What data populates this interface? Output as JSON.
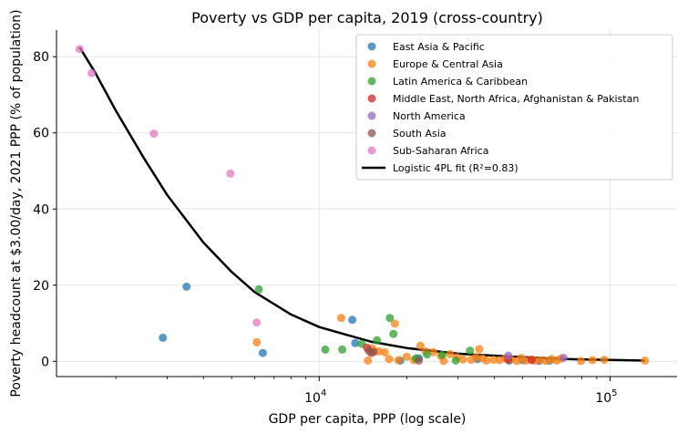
{
  "chart_data": {
    "type": "scatter",
    "title": "Poverty vs GDP per capita, 2019 (cross-country)",
    "xlabel": "GDP per capita, PPP (log scale)",
    "ylabel": "Poverty headcount at $3.00/day, 2021 PPP (% of population)",
    "x_scale": "log",
    "xlim": [
      1250,
      170000
    ],
    "ylim": [
      -4,
      87
    ],
    "x_ticks": [
      {
        "value": 10000,
        "base": "10",
        "exp": "4"
      },
      {
        "value": 100000,
        "base": "10",
        "exp": "5"
      }
    ],
    "y_ticks": [
      {
        "value": 0,
        "label": "0"
      },
      {
        "value": 20,
        "label": "20"
      },
      {
        "value": 40,
        "label": "40"
      },
      {
        "value": 60,
        "label": "60"
      },
      {
        "value": 80,
        "label": "80"
      }
    ],
    "grid": true,
    "legend_position": "top-right",
    "series": [
      {
        "name": "East Asia & Pacific",
        "color": "#1f77b4",
        "points": [
          [
            2900,
            6.2
          ],
          [
            3500,
            19.6
          ],
          [
            6400,
            2.2
          ],
          [
            13000,
            10.9
          ],
          [
            13300,
            4.8
          ],
          [
            19000,
            0.2
          ],
          [
            22000,
            0.8
          ],
          [
            35000,
            0.6
          ],
          [
            45000,
            0.2
          ],
          [
            50000,
            0.3
          ],
          [
            57000,
            0.1
          ],
          [
            62000,
            0.2
          ]
        ]
      },
      {
        "name": "Europe & Central Asia",
        "color": "#ff7f0e",
        "points": [
          [
            6100,
            5.0
          ],
          [
            11900,
            11.4
          ],
          [
            14700,
            0.2
          ],
          [
            15200,
            3.4
          ],
          [
            16000,
            2.6
          ],
          [
            16800,
            2.4
          ],
          [
            17400,
            0.6
          ],
          [
            18200,
            9.9
          ],
          [
            18700,
            0.3
          ],
          [
            20000,
            1.2
          ],
          [
            21200,
            0.3
          ],
          [
            22300,
            4.1
          ],
          [
            23200,
            2.6
          ],
          [
            24700,
            2.4
          ],
          [
            26200,
            1.4
          ],
          [
            26800,
            0.1
          ],
          [
            28200,
            1.9
          ],
          [
            29800,
            1.1
          ],
          [
            31200,
            0.5
          ],
          [
            33300,
            0.4
          ],
          [
            34600,
            1.1
          ],
          [
            35500,
            3.2
          ],
          [
            36400,
            0.8
          ],
          [
            37600,
            0.2
          ],
          [
            39800,
            0.4
          ],
          [
            41700,
            0.3
          ],
          [
            43600,
            0.8
          ],
          [
            45700,
            0.5
          ],
          [
            47900,
            0.1
          ],
          [
            49500,
            0.9
          ],
          [
            51300,
            0.2
          ],
          [
            53700,
            0.5
          ],
          [
            55000,
            0.2
          ],
          [
            57700,
            0.3
          ],
          [
            60300,
            0.1
          ],
          [
            63100,
            0.6
          ],
          [
            65500,
            0.2
          ],
          [
            67600,
            0.7
          ],
          [
            79400,
            0.1
          ],
          [
            87100,
            0.3
          ],
          [
            95500,
            0.4
          ],
          [
            131800,
            0.2
          ]
        ]
      },
      {
        "name": "Latin America & Caribbean",
        "color": "#2ca02c",
        "points": [
          [
            6200,
            18.9
          ],
          [
            10500,
            3.1
          ],
          [
            12000,
            3.1
          ],
          [
            14000,
            4.6
          ],
          [
            15800,
            5.5
          ],
          [
            17500,
            11.4
          ],
          [
            18000,
            7.2
          ],
          [
            21500,
            0.8
          ],
          [
            23500,
            1.8
          ],
          [
            26500,
            1.7
          ],
          [
            29500,
            0.2
          ],
          [
            33000,
            2.8
          ]
        ]
      },
      {
        "name": "Middle East, North Africa, Afghanistan & Pakistan",
        "color": "#d62728",
        "points": [
          [
            14600,
            3.6
          ],
          [
            15100,
            2.2
          ],
          [
            44600,
            0.5
          ],
          [
            53700,
            0.3
          ]
        ]
      },
      {
        "name": "North America",
        "color": "#9467bd",
        "points": [
          [
            44700,
            1.5
          ],
          [
            69200,
            0.9
          ]
        ]
      },
      {
        "name": "South Asia",
        "color": "#8c564b",
        "points": [
          [
            14800,
            2.8
          ],
          [
            15400,
            2.5
          ],
          [
            22000,
            0.2
          ]
        ]
      },
      {
        "name": "Sub-Saharan Africa",
        "color": "#e377c2",
        "points": [
          [
            1500,
            82.0
          ],
          [
            1650,
            75.7
          ],
          [
            2700,
            59.8
          ],
          [
            4950,
            49.3
          ],
          [
            6100,
            10.2
          ]
        ]
      }
    ],
    "fit": {
      "name": "Logistic 4PL fit (R²=0.83)",
      "color": "#000000",
      "x_start": 1500,
      "x_end": 131800,
      "line": [
        [
          1500,
          82.5
        ],
        [
          1700,
          75.8
        ],
        [
          2000,
          65.8
        ],
        [
          2500,
          53.3
        ],
        [
          3000,
          43.7
        ],
        [
          4000,
          31.2
        ],
        [
          5000,
          23.5
        ],
        [
          6000,
          18.2
        ],
        [
          8000,
          12.3
        ],
        [
          10000,
          9.0
        ],
        [
          15000,
          5.2
        ],
        [
          20000,
          3.5
        ],
        [
          30000,
          2.0
        ],
        [
          50000,
          1.1
        ],
        [
          70000,
          0.6
        ],
        [
          100000,
          0.35
        ],
        [
          131800,
          0.2
        ]
      ]
    }
  }
}
